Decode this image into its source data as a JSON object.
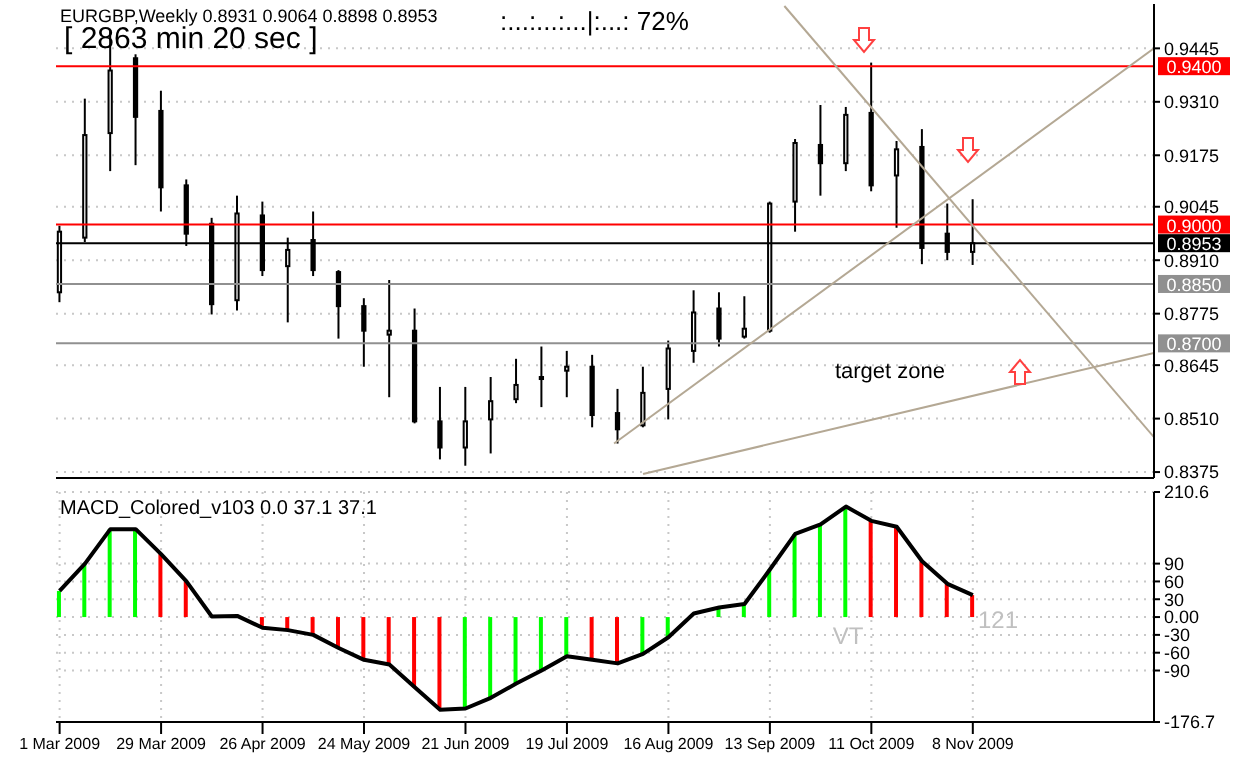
{
  "chart_data": [
    {
      "type": "candlestick",
      "title": "EURGBP,Weekly 0.8931 0.9064 0.8898 0.8953",
      "annotations": [
        "[ 2863 min 20 sec ]",
        ":...:...:...|:...:  72%",
        "target zone"
      ],
      "x": [
        "2009-03-01",
        "2009-03-08",
        "2009-03-15",
        "2009-03-22",
        "2009-03-29",
        "2009-04-05",
        "2009-04-12",
        "2009-04-19",
        "2009-04-26",
        "2009-05-03",
        "2009-05-10",
        "2009-05-17",
        "2009-05-24",
        "2009-05-31",
        "2009-06-07",
        "2009-06-14",
        "2009-06-21",
        "2009-06-28",
        "2009-07-05",
        "2009-07-12",
        "2009-07-19",
        "2009-07-26",
        "2009-08-02",
        "2009-08-09",
        "2009-08-16",
        "2009-08-23",
        "2009-08-30",
        "2009-09-06",
        "2009-09-13",
        "2009-09-20",
        "2009-09-27",
        "2009-10-04",
        "2009-10-11",
        "2009-10-18",
        "2009-10-25",
        "2009-11-01",
        "2009-11-08"
      ],
      "series": [
        {
          "color": "#000000",
          "ohlc": [
            [
              0.8829,
              0.8997,
              0.8804,
              0.8982
            ],
            [
              0.8967,
              0.9318,
              0.8956,
              0.9226
            ],
            [
              0.9231,
              0.9491,
              0.9135,
              0.9389
            ],
            [
              0.942,
              0.943,
              0.915,
              0.9272
            ],
            [
              0.9287,
              0.9338,
              0.9033,
              0.9094
            ],
            [
              0.9099,
              0.9114,
              0.8946,
              0.8977
            ],
            [
              0.9002,
              0.9017,
              0.8773,
              0.8799
            ],
            [
              0.8809,
              0.9073,
              0.8783,
              0.9028
            ],
            [
              0.9023,
              0.9058,
              0.887,
              0.8885
            ],
            [
              0.8895,
              0.8967,
              0.8753,
              0.8936
            ],
            [
              0.8961,
              0.9033,
              0.887,
              0.8885
            ],
            [
              0.888,
              0.8885,
              0.8712,
              0.8794
            ],
            [
              0.8794,
              0.8814,
              0.8641,
              0.8732
            ],
            [
              0.8722,
              0.886,
              0.8564,
              0.8732
            ],
            [
              0.8732,
              0.8788,
              0.8498,
              0.8503
            ],
            [
              0.8503,
              0.859,
              0.8407,
              0.8437
            ],
            [
              0.8437,
              0.859,
              0.8391,
              0.8503
            ],
            [
              0.8508,
              0.8615,
              0.8422,
              0.8554
            ],
            [
              0.8559,
              0.8661,
              0.8549,
              0.8595
            ],
            [
              0.861,
              0.8692,
              0.8539,
              0.8615
            ],
            [
              0.8631,
              0.8681,
              0.8564,
              0.8641
            ],
            [
              0.8641,
              0.8671,
              0.8488,
              0.8519
            ],
            [
              0.8524,
              0.8585,
              0.8447,
              0.8483
            ],
            [
              0.8493,
              0.8641,
              0.8488,
              0.8575
            ],
            [
              0.8585,
              0.8707,
              0.8508,
              0.8687
            ],
            [
              0.8681,
              0.8834,
              0.8651,
              0.8778
            ],
            [
              0.8788,
              0.8829,
              0.8692,
              0.8712
            ],
            [
              0.8717,
              0.8819,
              0.8712,
              0.8737
            ],
            [
              0.8732,
              0.9058,
              0.8727,
              0.9053
            ],
            [
              0.9058,
              0.9216,
              0.8982,
              0.9206
            ],
            [
              0.9201,
              0.9302,
              0.9073,
              0.9155
            ],
            [
              0.9155,
              0.9297,
              0.9135,
              0.9277
            ],
            [
              0.9282,
              0.9409,
              0.9084,
              0.9099
            ],
            [
              0.9124,
              0.9211,
              0.8992,
              0.919
            ],
            [
              0.9196,
              0.9241,
              0.89,
              0.8941
            ],
            [
              0.8977,
              0.9053,
              0.891,
              0.8931
            ],
            [
              0.8931,
              0.9064,
              0.8898,
              0.8953
            ]
          ]
        },
        {
          "type": "line",
          "color": "#b4a894",
          "x": [
            "2009-09-17",
            "2009-12-28"
          ],
          "values": [
            0.9552,
            0.8463
          ]
        },
        {
          "type": "line",
          "color": "#b4a894",
          "x": [
            "2009-08-01",
            "2009-12-28"
          ],
          "values": [
            0.8447,
            0.9445
          ]
        },
        {
          "type": "line",
          "color": "#b4a894",
          "x": [
            "2009-08-09",
            "2009-12-28"
          ],
          "values": [
            0.837,
            0.8676
          ]
        }
      ],
      "ref_lines": [
        {
          "axis": "y",
          "value": 0.94,
          "label": "0.9400",
          "color": "#ff0000"
        },
        {
          "axis": "y",
          "value": 0.9,
          "label": "0.9000",
          "color": "#ff0000"
        },
        {
          "axis": "y",
          "value": 0.8953,
          "label": "0.8953",
          "color": "#000000"
        },
        {
          "axis": "y",
          "value": 0.885,
          "label": "0.8850",
          "color": "#909090"
        },
        {
          "axis": "y",
          "value": 0.87,
          "label": "0.8700",
          "color": "#909090"
        }
      ],
      "xlim": [
        "2009-02-28",
        "2009-12-28"
      ],
      "xticks": [
        {
          "value": "2009-03-01",
          "label": null
        },
        {
          "value": "2009-03-29",
          "label": null
        },
        {
          "value": "2009-04-26",
          "label": null
        },
        {
          "value": "2009-05-24",
          "label": null
        },
        {
          "value": "2009-06-21",
          "label": null
        },
        {
          "value": "2009-07-19",
          "label": null
        },
        {
          "value": "2009-08-16",
          "label": null
        },
        {
          "value": "2009-09-13",
          "label": null
        },
        {
          "value": "2009-10-11",
          "label": null
        },
        {
          "value": "2009-11-08",
          "label": null
        }
      ],
      "ylim": [
        0.836,
        0.9557
      ],
      "yticks": [
        0.8375,
        {
          "value": 0.851,
          "label": "0.8510"
        },
        0.8645,
        0.8775,
        {
          "value": 0.891,
          "label": "0.8910"
        },
        0.9045,
        0.9175,
        {
          "value": 0.931,
          "label": "0.9310"
        },
        0.9445
      ],
      "grid": true,
      "marker": "none",
      "tick_labels": "y"
    },
    {
      "type": "bar",
      "title": "MACD_Colored_v103 0.0 37.1 37.1",
      "annotations": [
        "VT",
        "121"
      ],
      "x": [
        "2009-03-01",
        "2009-03-08",
        "2009-03-15",
        "2009-03-22",
        "2009-03-29",
        "2009-04-05",
        "2009-04-12",
        "2009-04-19",
        "2009-04-26",
        "2009-05-03",
        "2009-05-10",
        "2009-05-17",
        "2009-05-24",
        "2009-05-31",
        "2009-06-07",
        "2009-06-14",
        "2009-06-21",
        "2009-06-28",
        "2009-07-05",
        "2009-07-12",
        "2009-07-19",
        "2009-07-26",
        "2009-08-02",
        "2009-08-09",
        "2009-08-16",
        "2009-08-23",
        "2009-08-30",
        "2009-09-06",
        "2009-09-13",
        "2009-09-20",
        "2009-09-27",
        "2009-10-04",
        "2009-10-11",
        "2009-10-18",
        "2009-10-25",
        "2009-11-01",
        "2009-11-08"
      ],
      "series": [
        {
          "colors": [
            "#00ff00",
            "#00ff00",
            "#00ff00",
            "#00ff00",
            "#ff0000",
            "#ff0000",
            "#ff0000",
            "#00ff00",
            "#ff0000",
            "#ff0000",
            "#ff0000",
            "#ff0000",
            "#ff0000",
            "#ff0000",
            "#ff0000",
            "#ff0000",
            "#00ff00",
            "#00ff00",
            "#00ff00",
            "#00ff00",
            "#00ff00",
            "#ff0000",
            "#ff0000",
            "#00ff00",
            "#00ff00",
            "#00ff00",
            "#00ff00",
            "#00ff00",
            "#00ff00",
            "#00ff00",
            "#00ff00",
            "#00ff00",
            "#ff0000",
            "#ff0000",
            "#ff0000",
            "#ff0000",
            "#ff0000"
          ],
          "values": [
            44,
            90,
            148,
            148,
            106,
            60,
            null,
            null,
            -18,
            -22,
            -30,
            -52,
            -72,
            -80,
            -118,
            -156,
            -154,
            -136,
            -112,
            -90,
            -66,
            -72,
            -78,
            -62,
            -34,
            null,
            16,
            22,
            80,
            140,
            156,
            186,
            162,
            152,
            94,
            56,
            37
          ]
        },
        {
          "type": "line",
          "color": "#000000",
          "values": [
            44,
            90,
            148,
            148,
            106,
            60,
            1,
            2,
            -18,
            -22,
            -30,
            -52,
            -72,
            -80,
            -118,
            -156,
            -154,
            -136,
            -112,
            -90,
            -66,
            -72,
            -78,
            -62,
            -34,
            6,
            16,
            22,
            80,
            140,
            156,
            186,
            162,
            152,
            94,
            56,
            37
          ]
        }
      ],
      "xlim": [
        "2009-02-28",
        "2009-12-28"
      ],
      "xticks": [
        {
          "value": "2009-03-01",
          "label": "1 Mar 2009"
        },
        {
          "value": "2009-03-29",
          "label": "29 Mar 2009"
        },
        {
          "value": "2009-04-26",
          "label": "26 Apr 2009"
        },
        {
          "value": "2009-05-24",
          "label": "24 May 2009"
        },
        {
          "value": "2009-06-21",
          "label": "21 Jun 2009"
        },
        {
          "value": "2009-07-19",
          "label": "19 Jul 2009"
        },
        {
          "value": "2009-08-16",
          "label": "16 Aug 2009"
        },
        {
          "value": "2009-09-13",
          "label": "13 Sep 2009"
        },
        {
          "value": "2009-10-11",
          "label": "11 Oct 2009"
        },
        {
          "value": "2009-11-08",
          "label": "8 Nov 2009"
        }
      ],
      "ylim": [
        -176.7,
        210.6
      ],
      "yticks": [
        -176.7,
        -90,
        -60,
        -30,
        {
          "value": 0,
          "label": "0.00"
        },
        30,
        60,
        90,
        210.6
      ],
      "grid": true,
      "marker": "none"
    }
  ]
}
